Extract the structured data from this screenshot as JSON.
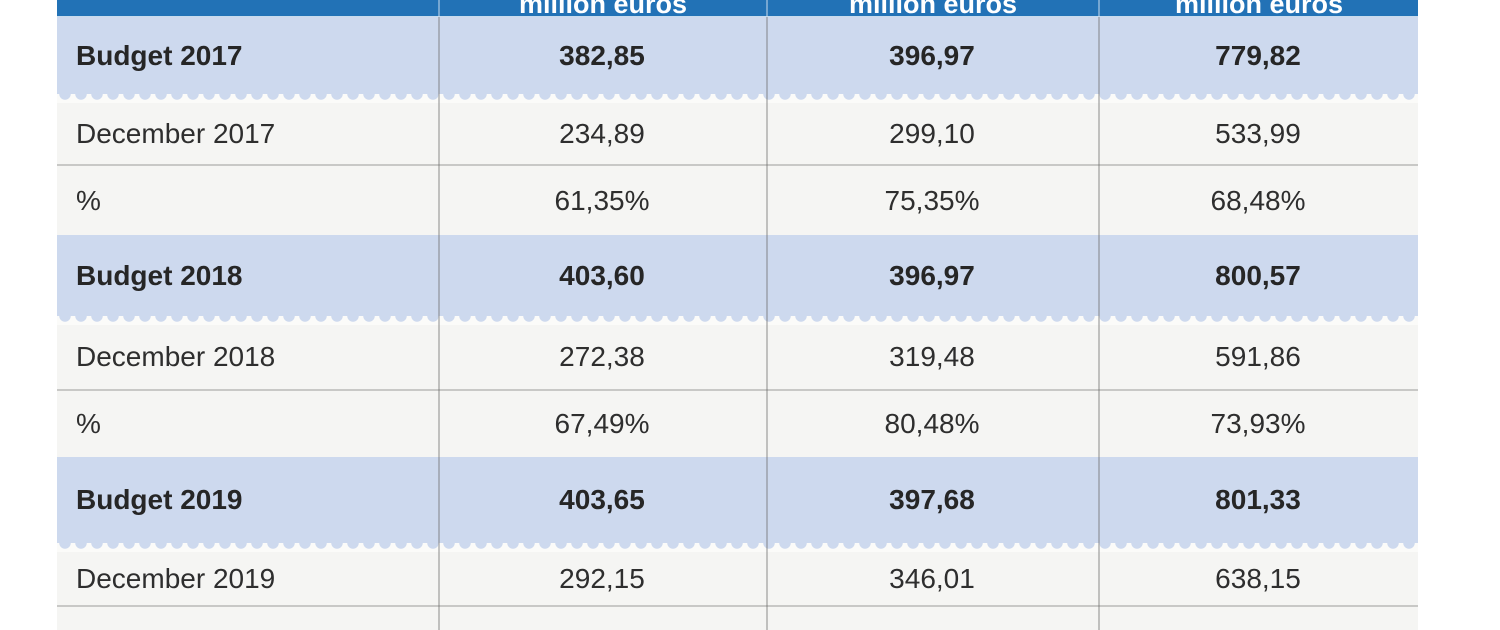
{
  "table": {
    "title": "budget-execution-table",
    "columns": [
      "",
      "million euros",
      "million euros",
      "million euros"
    ],
    "rows": [
      {
        "type": "budget",
        "label": "Budget 2017",
        "values": [
          "382,85",
          "396,97",
          "779,82"
        ]
      },
      {
        "type": "data",
        "label": "December 2017",
        "values": [
          "234,89",
          "299,10",
          "533,99"
        ]
      },
      {
        "type": "data",
        "label": "%",
        "values": [
          "61,35%",
          "75,35%",
          "68,48%"
        ]
      },
      {
        "type": "budget",
        "label": "Budget 2018",
        "values": [
          "403,60",
          "396,97",
          "800,57"
        ]
      },
      {
        "type": "data",
        "label": "December 2018",
        "values": [
          "272,38",
          "319,48",
          "591,86"
        ]
      },
      {
        "type": "data",
        "label": "%",
        "values": [
          "67,49%",
          "80,48%",
          "73,93%"
        ]
      },
      {
        "type": "budget",
        "label": "Budget 2019",
        "values": [
          "403,65",
          "397,68",
          "801,33"
        ]
      },
      {
        "type": "data",
        "label": "December 2019",
        "values": [
          "292,15",
          "346,01",
          "638,15"
        ]
      },
      {
        "type": "partial",
        "label": "",
        "values": [
          "",
          "",
          ""
        ]
      }
    ],
    "colors": {
      "header_bg": "#2272b6",
      "header_text": "#ffffff",
      "budget_row_bg": "#cdd9ee",
      "data_row_bg": "#f5f5f3",
      "wave_gap": "#fbfbf9",
      "row_border": "#c8c8c6",
      "text": "#2e2e2e"
    }
  }
}
